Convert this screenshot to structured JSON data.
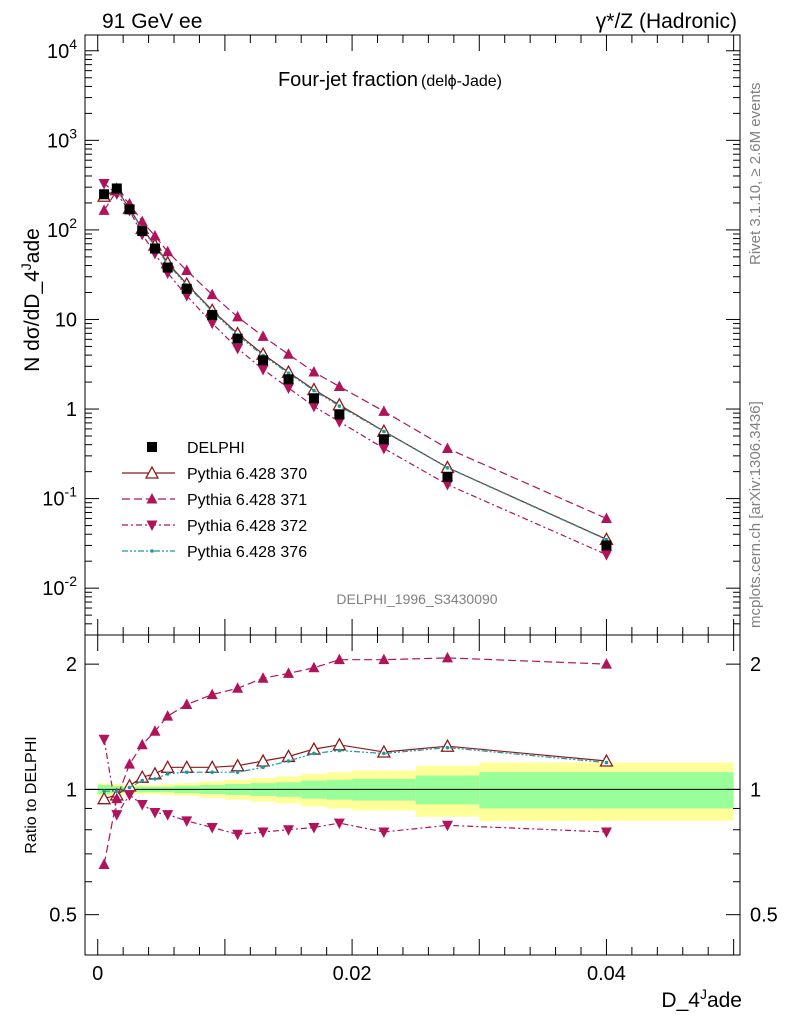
{
  "header": {
    "left": "91 GeV ee",
    "right": "γ*/Z (Hadronic)"
  },
  "side_texts": {
    "rivet": "Rivet 3.1.10, ≥ 2.6M events",
    "mcplots": "mcplots.cern.ch [arXiv:1306.3436]"
  },
  "chart_data": {
    "type": "line",
    "title_main": "Four-jet fraction",
    "title_sub": "(delϕ-Jade)",
    "analysis_label": "DELPHI_1996_S3430090",
    "xlabel": "D_4^Jade",
    "ylabel_main": "N dσ/dD_4^Jade",
    "ylabel_ratio": "Ratio to DELPHI",
    "xlim": [
      -0.001,
      0.0505
    ],
    "ylim_main": [
      0.003,
      15000
    ],
    "yscale_main": "log",
    "ylim_ratio": [
      0.4,
      2.35
    ],
    "yscale_ratio": "log",
    "x_ticks": [
      "0",
      "0.02",
      "0.04"
    ],
    "main_y_ticks": [
      "10^-2",
      "10^-1",
      "1",
      "10",
      "10^2",
      "10^3",
      "10^4"
    ],
    "ratio_y_ticks": [
      "0.5",
      "1",
      "2"
    ],
    "x": [
      0.0005,
      0.0015,
      0.0025,
      0.0035,
      0.0045,
      0.0055,
      0.007,
      0.009,
      0.011,
      0.013,
      0.015,
      0.017,
      0.019,
      0.0225,
      0.0275,
      0.04
    ],
    "series": [
      {
        "name": "DELPHI",
        "style": "data",
        "color": "#000000",
        "marker": "filled-square",
        "values": [
          250,
          290,
          170,
          97,
          62,
          38,
          22,
          11.2,
          6.1,
          3.5,
          2.15,
          1.32,
          0.87,
          0.46,
          0.175,
          0.03
        ]
      },
      {
        "name": "Pythia 6.428 370",
        "style": "solid",
        "color": "#8b1a1a",
        "marker": "open-triangle-up",
        "ratio": [
          0.95,
          0.97,
          1.02,
          1.07,
          1.09,
          1.13,
          1.13,
          1.13,
          1.14,
          1.17,
          1.2,
          1.25,
          1.28,
          1.23,
          1.27,
          1.17
        ]
      },
      {
        "name": "Pythia 6.428 371",
        "style": "dashed",
        "color": "#b0135a",
        "marker": "filled-triangle-up",
        "ratio": [
          0.66,
          0.95,
          1.15,
          1.28,
          1.38,
          1.5,
          1.6,
          1.69,
          1.75,
          1.85,
          1.9,
          1.96,
          2.05,
          2.05,
          2.07,
          2.0
        ]
      },
      {
        "name": "Pythia 6.428 372",
        "style": "dashdot",
        "color": "#b0135a",
        "marker": "filled-triangle-down",
        "ratio": [
          1.32,
          0.87,
          0.97,
          0.92,
          0.88,
          0.87,
          0.84,
          0.81,
          0.78,
          0.79,
          0.8,
          0.81,
          0.83,
          0.79,
          0.82,
          0.79
        ]
      },
      {
        "name": "Pythia 6.428 376",
        "style": "dashdotdot",
        "color": "#1a9a9a",
        "marker": "small-dot",
        "ratio": [
          0.99,
          0.99,
          1.01,
          1.05,
          1.06,
          1.09,
          1.1,
          1.1,
          1.1,
          1.13,
          1.17,
          1.22,
          1.24,
          1.22,
          1.26,
          1.16
        ]
      }
    ],
    "uncertainty_bands": {
      "edges": [
        0.0,
        0.001,
        0.002,
        0.003,
        0.004,
        0.005,
        0.006,
        0.008,
        0.01,
        0.012,
        0.014,
        0.016,
        0.018,
        0.02,
        0.025,
        0.03,
        0.05
      ],
      "stat_green_halfwidth": [
        0.025,
        0.02,
        0.015,
        0.015,
        0.015,
        0.015,
        0.02,
        0.025,
        0.03,
        0.035,
        0.04,
        0.05,
        0.055,
        0.06,
        0.08,
        0.1
      ],
      "total_yellow_halfwidth": [
        0.035,
        0.03,
        0.025,
        0.025,
        0.025,
        0.03,
        0.035,
        0.045,
        0.055,
        0.065,
        0.075,
        0.09,
        0.1,
        0.11,
        0.14,
        0.16
      ]
    },
    "colors": {
      "band_stat": "#99ff99",
      "band_total": "#ffff99"
    },
    "legend_placement": "lower-left",
    "grid": false
  }
}
